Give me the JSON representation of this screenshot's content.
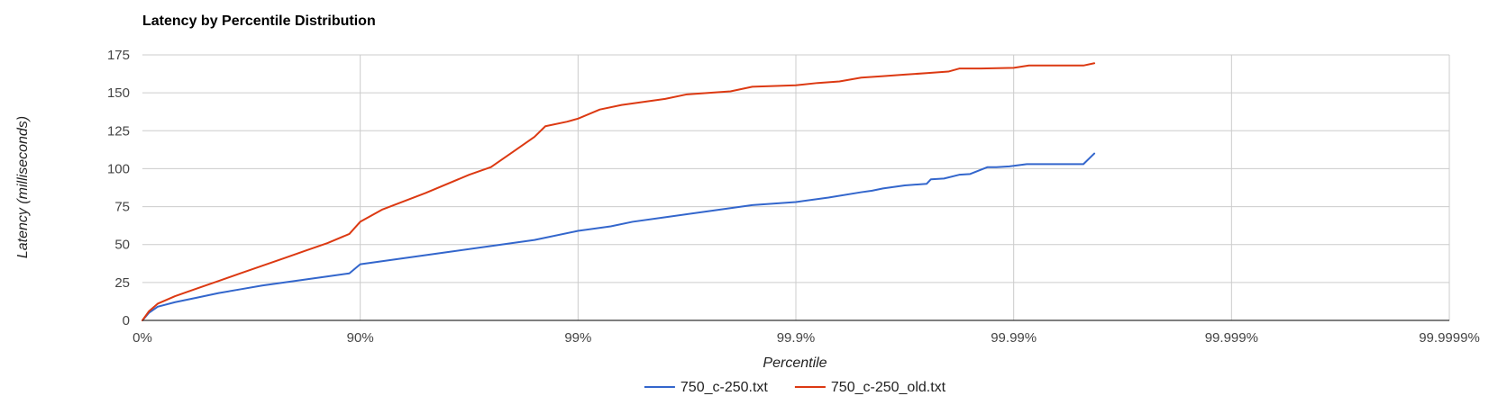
{
  "chart_data": {
    "type": "line",
    "title": "Latency by Percentile Distribution",
    "xlabel": "Percentile",
    "ylabel": "Latency (milliseconds)",
    "x_scale": "log-percentile",
    "x_ticks": [
      {
        "value": 0,
        "label": "0%"
      },
      {
        "value": 1,
        "label": "90%"
      },
      {
        "value": 2,
        "label": "99%"
      },
      {
        "value": 3,
        "label": "99.9%"
      },
      {
        "value": 4,
        "label": "99.99%"
      },
      {
        "value": 5,
        "label": "99.999%"
      },
      {
        "value": 6,
        "label": "99.9999%"
      }
    ],
    "xlim": [
      0,
      6
    ],
    "ylim": [
      0,
      175
    ],
    "y_ticks": [
      0,
      25,
      50,
      75,
      100,
      125,
      150,
      175
    ],
    "grid": true,
    "legend_position": "bottom",
    "series": [
      {
        "name": "750_c-250.txt",
        "color": "#3366cc",
        "points": [
          [
            0,
            0
          ],
          [
            0.03,
            5
          ],
          [
            0.07,
            9
          ],
          [
            0.15,
            12
          ],
          [
            0.25,
            15
          ],
          [
            0.35,
            18
          ],
          [
            0.45,
            20.5
          ],
          [
            0.55,
            23
          ],
          [
            0.65,
            25
          ],
          [
            0.75,
            27
          ],
          [
            0.85,
            29
          ],
          [
            0.95,
            31
          ],
          [
            1.0,
            37
          ],
          [
            1.2,
            41
          ],
          [
            1.4,
            45
          ],
          [
            1.6,
            49
          ],
          [
            1.8,
            53
          ],
          [
            2.0,
            59
          ],
          [
            2.15,
            62
          ],
          [
            2.25,
            65
          ],
          [
            2.4,
            68
          ],
          [
            2.6,
            72
          ],
          [
            2.8,
            76
          ],
          [
            3.0,
            78
          ],
          [
            3.15,
            81
          ],
          [
            3.3,
            84.5
          ],
          [
            3.35,
            85.5
          ],
          [
            3.4,
            87
          ],
          [
            3.5,
            89
          ],
          [
            3.6,
            90
          ],
          [
            3.62,
            93
          ],
          [
            3.68,
            93.5
          ],
          [
            3.75,
            96
          ],
          [
            3.8,
            96.5
          ],
          [
            3.88,
            101
          ],
          [
            3.92,
            101
          ],
          [
            3.98,
            101.5
          ],
          [
            4.06,
            103
          ],
          [
            4.15,
            103
          ],
          [
            4.32,
            103
          ],
          [
            4.37,
            110
          ]
        ]
      },
      {
        "name": "750_c-250_old.txt",
        "color": "#dc3912",
        "points": [
          [
            0,
            0
          ],
          [
            0.03,
            6
          ],
          [
            0.07,
            11
          ],
          [
            0.15,
            16
          ],
          [
            0.25,
            21
          ],
          [
            0.35,
            26
          ],
          [
            0.45,
            31
          ],
          [
            0.55,
            36
          ],
          [
            0.65,
            41
          ],
          [
            0.75,
            46
          ],
          [
            0.85,
            51
          ],
          [
            0.95,
            57
          ],
          [
            1.0,
            65
          ],
          [
            1.1,
            73
          ],
          [
            1.3,
            84
          ],
          [
            1.5,
            96
          ],
          [
            1.6,
            101
          ],
          [
            1.7,
            111
          ],
          [
            1.8,
            121
          ],
          [
            1.85,
            128
          ],
          [
            1.95,
            131
          ],
          [
            2.0,
            133
          ],
          [
            2.1,
            139
          ],
          [
            2.2,
            142
          ],
          [
            2.4,
            146
          ],
          [
            2.5,
            149
          ],
          [
            2.7,
            151
          ],
          [
            2.8,
            154
          ],
          [
            3.0,
            155
          ],
          [
            3.1,
            156.5
          ],
          [
            3.2,
            157.5
          ],
          [
            3.3,
            160
          ],
          [
            3.4,
            161
          ],
          [
            3.5,
            162
          ],
          [
            3.6,
            163
          ],
          [
            3.7,
            164
          ],
          [
            3.75,
            166
          ],
          [
            3.85,
            166
          ],
          [
            4.0,
            166.5
          ],
          [
            4.07,
            168
          ],
          [
            4.32,
            168
          ],
          [
            4.37,
            169.5
          ]
        ]
      }
    ]
  }
}
